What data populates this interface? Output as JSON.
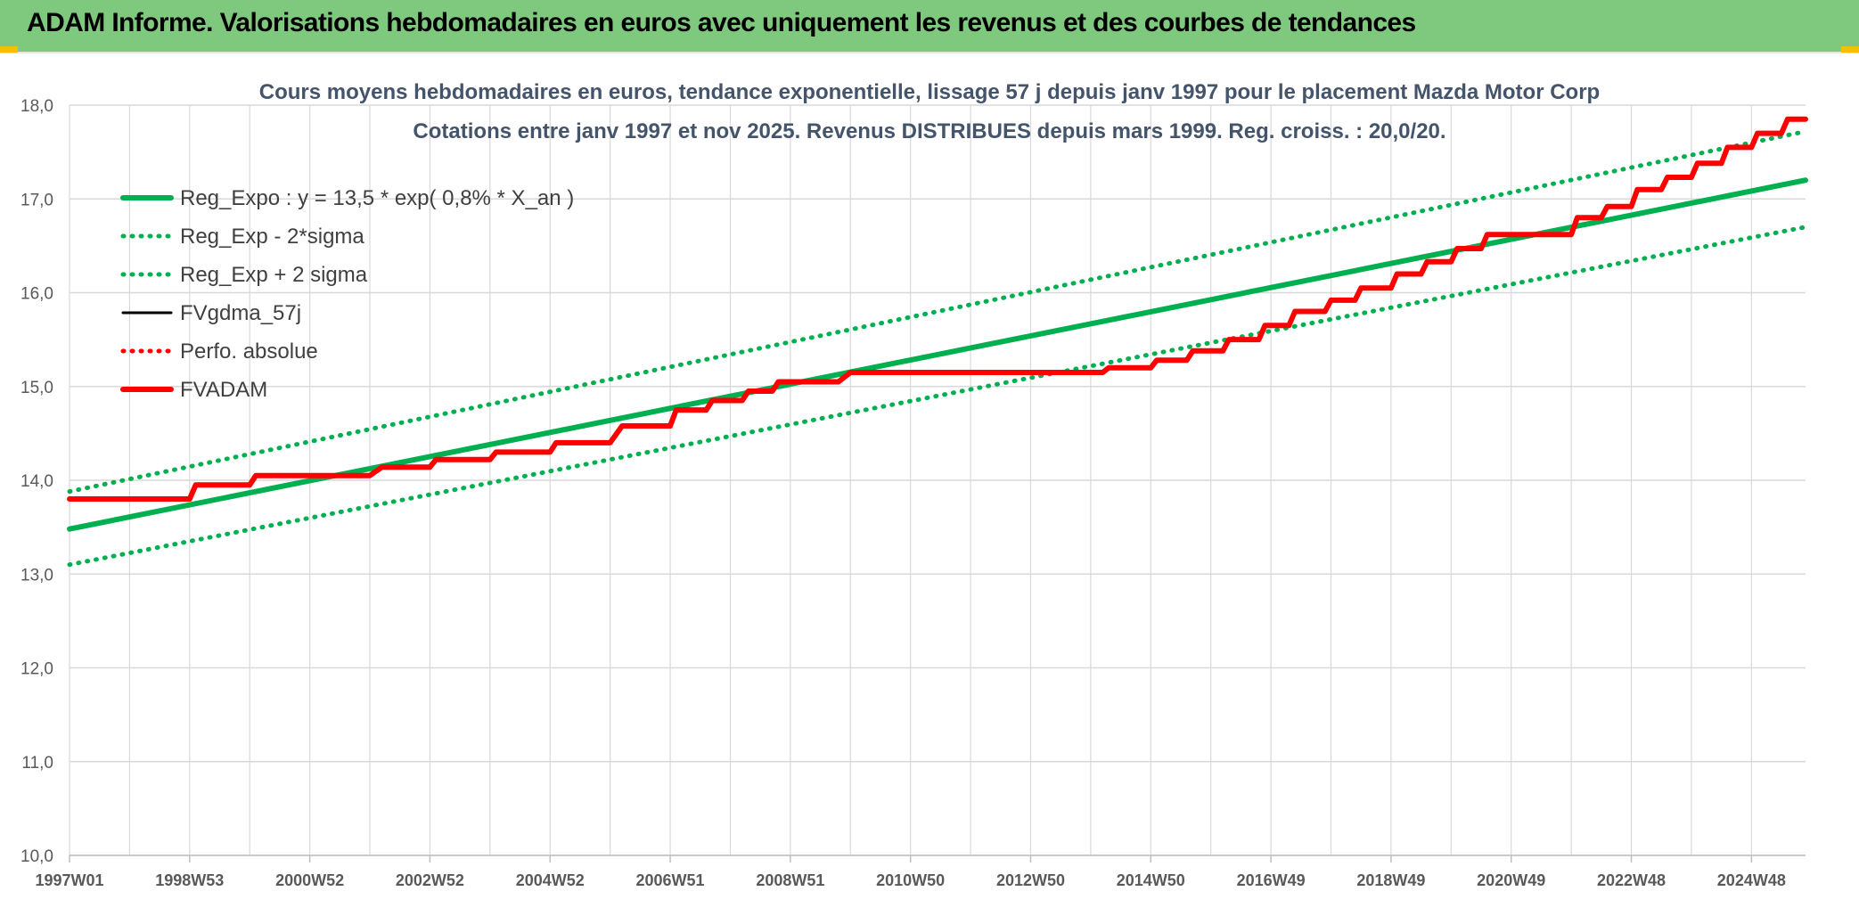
{
  "banner": {
    "title": "ADAM Informe. Valorisations hebdomadaires en euros avec uniquement les revenus et des courbes de tendances"
  },
  "colors": {
    "banner_bg": "#7fc97f",
    "green": "#00b050",
    "red": "#ff0000",
    "black": "#000000",
    "grid": "#d9d9d9"
  },
  "chart_data": {
    "type": "line",
    "title": "Cours moyens hebdomadaires en euros, tendance exponentielle, lissage 57 j depuis janv 1997 pour le placement Mazda Motor Corp",
    "subtitle": "Cotations entre janv 1997 et nov 2025. Revenus DISTRIBUES depuis mars 1999. Reg. croiss. : 20,0/20.",
    "xlabel": "",
    "ylabel": "",
    "ylim": [
      10.0,
      18.0
    ],
    "yticks": [
      "10,0",
      "11,0",
      "12,0",
      "13,0",
      "14,0",
      "15,0",
      "16,0",
      "17,0",
      "18,0"
    ],
    "xlim": [
      1997.0,
      2025.9
    ],
    "xticks": [
      {
        "label": "1997W01",
        "x": 1997.0
      },
      {
        "label": "1998W53",
        "x": 1999.0
      },
      {
        "label": "2000W52",
        "x": 2001.0
      },
      {
        "label": "2002W52",
        "x": 2003.0
      },
      {
        "label": "2004W52",
        "x": 2005.0
      },
      {
        "label": "2006W51",
        "x": 2007.0
      },
      {
        "label": "2008W51",
        "x": 2009.0
      },
      {
        "label": "2010W50",
        "x": 2011.0
      },
      {
        "label": "2012W50",
        "x": 2013.0
      },
      {
        "label": "2014W50",
        "x": 2015.0
      },
      {
        "label": "2016W49",
        "x": 2017.0
      },
      {
        "label": "2018W49",
        "x": 2019.0
      },
      {
        "label": "2020W49",
        "x": 2021.0
      },
      {
        "label": "2022W48",
        "x": 2023.0
      },
      {
        "label": "2024W48",
        "x": 2025.0
      }
    ],
    "grid": true,
    "legend_position": "top-left",
    "series": [
      {
        "name": "Reg_Expo : y = 13,5 * exp( 0,8% *  X_an )",
        "style": "solid-thick",
        "color": "#00b050",
        "x": [
          1997.0,
          2025.9
        ],
        "y": [
          13.48,
          17.2
        ]
      },
      {
        "name": "Reg_Exp - 2*sigma",
        "style": "dotted",
        "color": "#00b050",
        "x": [
          1997.0,
          2025.9
        ],
        "y": [
          13.1,
          16.7
        ]
      },
      {
        "name": "Reg_Exp + 2 sigma",
        "style": "dotted",
        "color": "#00b050",
        "x": [
          1997.0,
          2025.9
        ],
        "y": [
          13.88,
          17.72
        ]
      },
      {
        "name": "FVgdma_57j",
        "style": "solid",
        "color": "#000000",
        "x": [
          1997.0,
          1999.0,
          1999.1,
          2000.0,
          2000.1,
          2002.0,
          2002.2,
          2003.0,
          2003.1,
          2004.0,
          2004.1,
          2005.0,
          2005.1,
          2006.0,
          2006.2,
          2007.0,
          2007.1,
          2007.6,
          2007.7,
          2008.2,
          2008.3,
          2008.7,
          2008.8,
          2009.8,
          2010.0,
          2014.2,
          2014.3,
          2015.0,
          2015.1,
          2015.6,
          2015.7,
          2016.2,
          2016.3,
          2016.8,
          2016.9,
          2017.3,
          2017.4,
          2017.9,
          2018.0,
          2018.4,
          2018.5,
          2019.0,
          2019.1,
          2019.5,
          2019.6,
          2020.0,
          2020.1,
          2020.5,
          2020.6,
          2022.0,
          2022.1,
          2022.5,
          2022.6,
          2023.0,
          2023.1,
          2023.5,
          2023.6,
          2024.0,
          2024.1,
          2024.5,
          2024.6,
          2025.0,
          2025.1,
          2025.5,
          2025.6,
          2025.9
        ],
        "y": [
          13.8,
          13.8,
          13.95,
          13.95,
          14.05,
          14.05,
          14.14,
          14.14,
          14.22,
          14.22,
          14.3,
          14.3,
          14.4,
          14.4,
          14.58,
          14.58,
          14.75,
          14.75,
          14.85,
          14.85,
          14.95,
          14.95,
          15.05,
          15.05,
          15.15,
          15.15,
          15.2,
          15.2,
          15.28,
          15.28,
          15.38,
          15.38,
          15.5,
          15.5,
          15.65,
          15.65,
          15.8,
          15.8,
          15.92,
          15.92,
          16.05,
          16.05,
          16.2,
          16.2,
          16.33,
          16.33,
          16.47,
          16.47,
          16.62,
          16.62,
          16.8,
          16.8,
          16.92,
          16.92,
          17.1,
          17.1,
          17.23,
          17.23,
          17.38,
          17.38,
          17.55,
          17.55,
          17.7,
          17.7,
          17.85,
          17.85
        ]
      },
      {
        "name": "Perfo. absolue",
        "style": "dotted",
        "color": "#ff0000",
        "x": [],
        "y": []
      },
      {
        "name": "FVADAM",
        "style": "solid-thick",
        "color": "#ff0000",
        "x": [
          1997.0,
          1999.0,
          1999.1,
          2000.0,
          2000.1,
          2002.0,
          2002.2,
          2003.0,
          2003.1,
          2004.0,
          2004.1,
          2005.0,
          2005.1,
          2006.0,
          2006.2,
          2007.0,
          2007.1,
          2007.6,
          2007.7,
          2008.2,
          2008.3,
          2008.7,
          2008.8,
          2009.8,
          2010.0,
          2014.2,
          2014.3,
          2015.0,
          2015.1,
          2015.6,
          2015.7,
          2016.2,
          2016.3,
          2016.8,
          2016.9,
          2017.3,
          2017.4,
          2017.9,
          2018.0,
          2018.4,
          2018.5,
          2019.0,
          2019.1,
          2019.5,
          2019.6,
          2020.0,
          2020.1,
          2020.5,
          2020.6,
          2022.0,
          2022.1,
          2022.5,
          2022.6,
          2023.0,
          2023.1,
          2023.5,
          2023.6,
          2024.0,
          2024.1,
          2024.5,
          2024.6,
          2025.0,
          2025.1,
          2025.5,
          2025.6,
          2025.9
        ],
        "y": [
          13.8,
          13.8,
          13.95,
          13.95,
          14.05,
          14.05,
          14.14,
          14.14,
          14.22,
          14.22,
          14.3,
          14.3,
          14.4,
          14.4,
          14.58,
          14.58,
          14.75,
          14.75,
          14.85,
          14.85,
          14.95,
          14.95,
          15.05,
          15.05,
          15.15,
          15.15,
          15.2,
          15.2,
          15.28,
          15.28,
          15.38,
          15.38,
          15.5,
          15.5,
          15.65,
          15.65,
          15.8,
          15.8,
          15.92,
          15.92,
          16.05,
          16.05,
          16.2,
          16.2,
          16.33,
          16.33,
          16.47,
          16.47,
          16.62,
          16.62,
          16.8,
          16.8,
          16.92,
          16.92,
          17.1,
          17.1,
          17.23,
          17.23,
          17.38,
          17.38,
          17.55,
          17.55,
          17.7,
          17.7,
          17.85,
          17.85
        ]
      }
    ]
  }
}
